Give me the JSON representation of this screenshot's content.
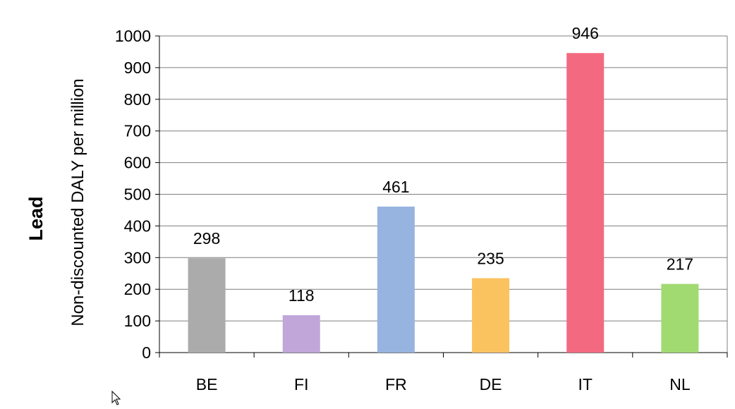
{
  "chart_data": {
    "type": "bar",
    "title": "Lead",
    "xlabel": "",
    "ylabel": "Non-discounted DALY per million",
    "categories": [
      "BE",
      "FI",
      "FR",
      "DE",
      "IT",
      "NL"
    ],
    "values": [
      298,
      118,
      461,
      235,
      946,
      217
    ],
    "data_labels": [
      "298",
      "118",
      "461",
      "235",
      "946",
      "217"
    ],
    "colors": [
      "#ababab",
      "#c0a6d9",
      "#97b3e0",
      "#fbc260",
      "#f36a80",
      "#a2da72"
    ],
    "ylim": [
      0,
      1000
    ],
    "yticks": [
      "0",
      "100",
      "200",
      "300",
      "400",
      "500",
      "600",
      "700",
      "800",
      "900",
      "1000"
    ],
    "grid": true,
    "legend": "none"
  },
  "cursor": {
    "icon": "mouse-pointer-icon"
  }
}
